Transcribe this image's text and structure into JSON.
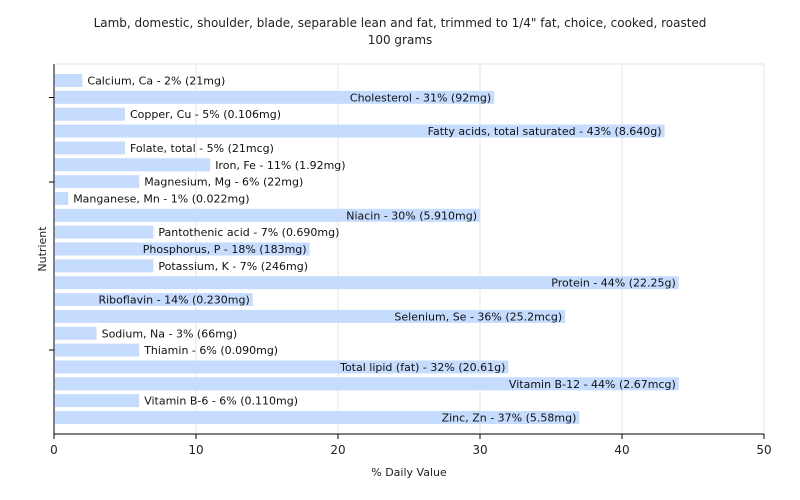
{
  "chart_data": {
    "type": "bar",
    "orientation": "horizontal",
    "title": "Lamb, domestic, shoulder, blade, separable lean and fat, trimmed to 1/4\" fat, choice, cooked, roasted",
    "subtitle": "100 grams",
    "xlabel": "% Daily Value",
    "ylabel": "Nutrient",
    "xlim": [
      0,
      50
    ],
    "xticks": [
      0,
      10,
      20,
      30,
      40,
      50
    ],
    "grid": true,
    "bar_color": "#c6dcff",
    "categories": [
      "Calcium, Ca",
      "Cholesterol",
      "Copper, Cu",
      "Fatty acids, total saturated",
      "Folate, total",
      "Iron, Fe",
      "Magnesium, Mg",
      "Manganese, Mn",
      "Niacin",
      "Pantothenic acid",
      "Phosphorus, P",
      "Potassium, K",
      "Protein",
      "Riboflavin",
      "Selenium, Se",
      "Sodium, Na",
      "Thiamin",
      "Total lipid (fat)",
      "Vitamin B-12",
      "Vitamin B-6",
      "Zinc, Zn"
    ],
    "values": [
      2,
      31,
      5,
      43,
      5,
      11,
      6,
      1,
      30,
      7,
      18,
      7,
      44,
      14,
      36,
      3,
      6,
      32,
      44,
      6,
      37
    ],
    "labels": [
      "Calcium, Ca - 2% (21mg)",
      "Cholesterol - 31% (92mg)",
      "Copper, Cu - 5% (0.106mg)",
      "Fatty acids, total saturated - 43% (8.640g)",
      "Folate, total - 5% (21mcg)",
      "Iron, Fe - 11% (1.92mg)",
      "Magnesium, Mg - 6% (22mg)",
      "Manganese, Mn - 1% (0.022mg)",
      "Niacin - 30% (5.910mg)",
      "Pantothenic acid - 7% (0.690mg)",
      "Phosphorus, P - 18% (183mg)",
      "Potassium, K - 7% (246mg)",
      "Protein - 44% (22.25g)",
      "Riboflavin - 14% (0.230mg)",
      "Selenium, Se - 36% (25.2mcg)",
      "Sodium, Na - 3% (66mg)",
      "Thiamin - 6% (0.090mg)",
      "Total lipid (fat) - 32% (20.61g)",
      "Vitamin B-12 - 44% (2.67mcg)",
      "Vitamin B-6 - 6% (0.110mg)",
      "Zinc, Zn - 37% (5.58mg)"
    ]
  }
}
